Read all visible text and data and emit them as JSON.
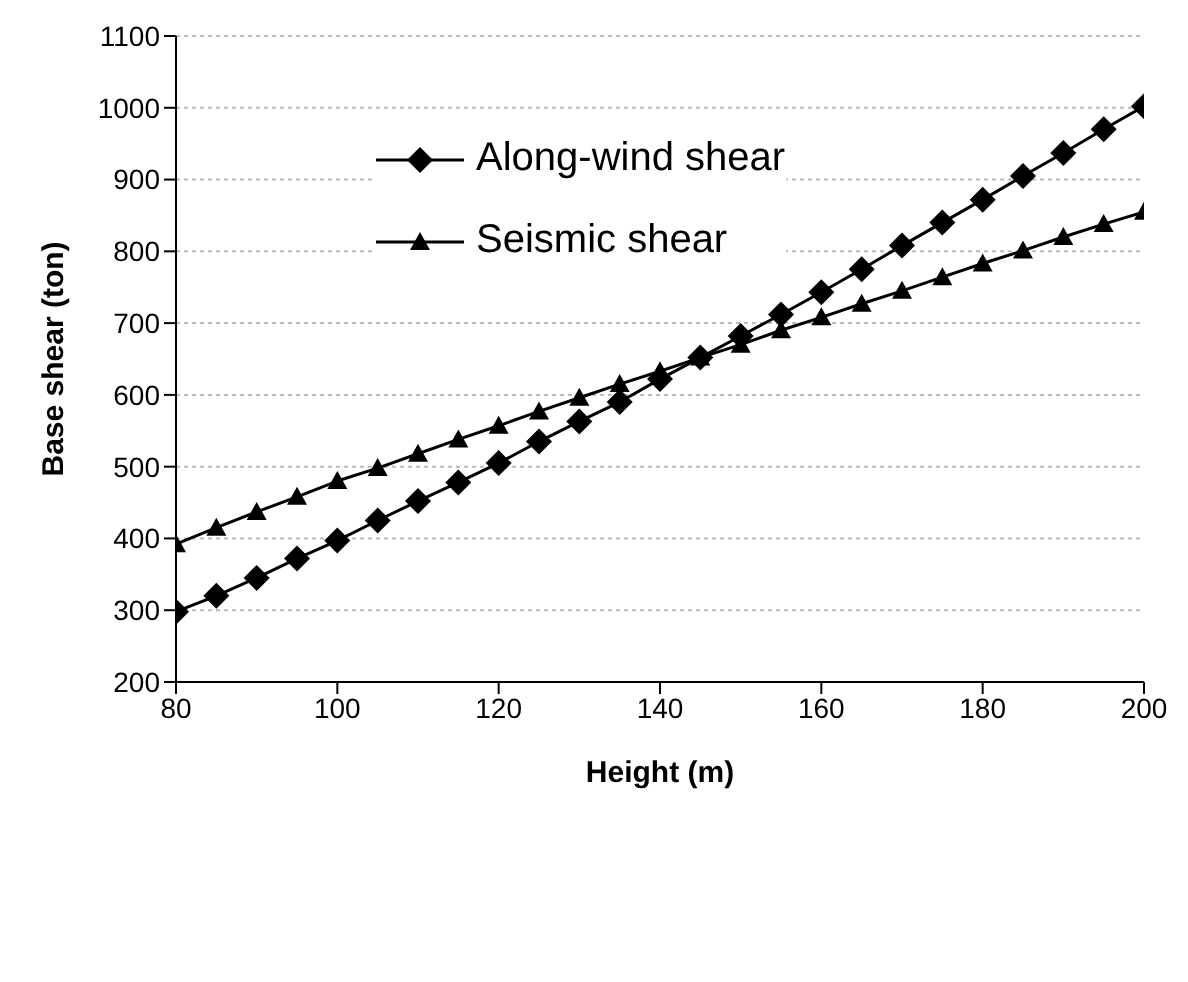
{
  "chart_data": {
    "type": "line",
    "xlabel": "Height (m)",
    "ylabel": "Base shear (ton)",
    "x": [
      80,
      85,
      90,
      95,
      100,
      105,
      110,
      115,
      120,
      125,
      130,
      135,
      140,
      145,
      150,
      155,
      160,
      165,
      170,
      175,
      180,
      185,
      190,
      195,
      200
    ],
    "series": [
      {
        "name": "Along-wind shear",
        "color": "#000000",
        "marker": "diamond",
        "values": [
          298,
          320,
          345,
          372,
          397,
          425,
          452,
          478,
          505,
          535,
          563,
          590,
          622,
          652,
          682,
          712,
          743,
          775,
          808,
          840,
          872,
          905,
          937,
          970,
          1002
        ]
      },
      {
        "name": "Seismic shear",
        "color": "#000000",
        "marker": "triangle",
        "values": [
          392,
          415,
          437,
          458,
          480,
          498,
          518,
          538,
          557,
          577,
          596,
          615,
          633,
          652,
          670,
          690,
          708,
          727,
          745,
          764,
          783,
          801,
          820,
          838,
          855
        ]
      }
    ],
    "xlim": [
      80,
      200
    ],
    "xticks": [
      80,
      100,
      120,
      140,
      160,
      180,
      200
    ],
    "ylim": [
      200,
      1100
    ],
    "yticks": [
      200,
      300,
      400,
      500,
      600,
      700,
      800,
      900,
      1000,
      1100
    ],
    "grid": "y",
    "legend": "top",
    "line_style": "solid"
  }
}
